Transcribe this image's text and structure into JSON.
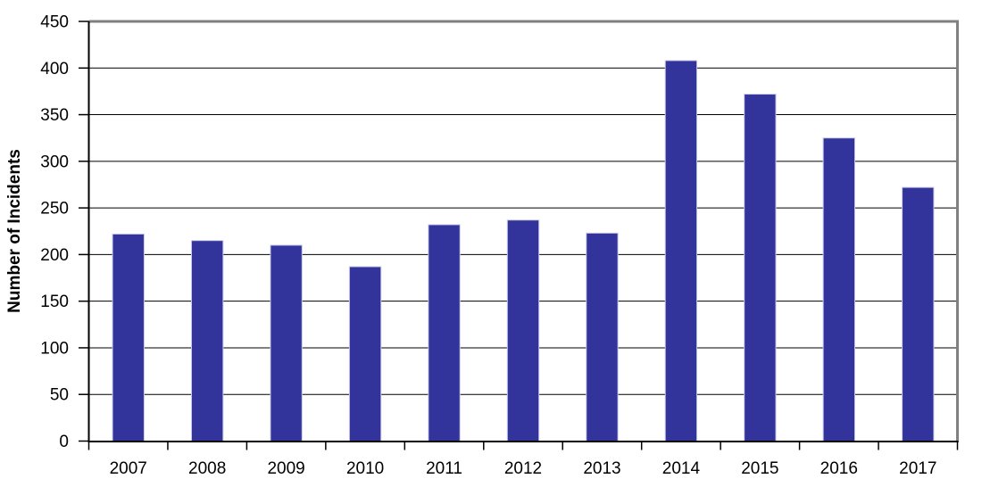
{
  "chart_data": {
    "type": "bar",
    "title": "",
    "xlabel": "",
    "ylabel": "Number of Incidents",
    "categories": [
      "2007",
      "2008",
      "2009",
      "2010",
      "2011",
      "2012",
      "2013",
      "2014",
      "2015",
      "2016",
      "2017"
    ],
    "series": [
      {
        "name": "Number of Incidents",
        "values": [
          222,
          215,
          210,
          187,
          232,
          237,
          223,
          408,
          372,
          325,
          272
        ]
      }
    ],
    "ylim": [
      0,
      450
    ],
    "ytick_step": 50,
    "ytick_labels": [
      "0",
      "50",
      "100",
      "150",
      "200",
      "250",
      "300",
      "350",
      "400",
      "450"
    ],
    "grid": true,
    "legend_position": "none",
    "colors": {
      "bar_fill": "#32349B",
      "bar_border": "#C9C9E6",
      "gridline": "#000000",
      "axis": "#000000",
      "outer_border": "#808080",
      "background": "#FFFFFF",
      "text": "#000000"
    }
  }
}
